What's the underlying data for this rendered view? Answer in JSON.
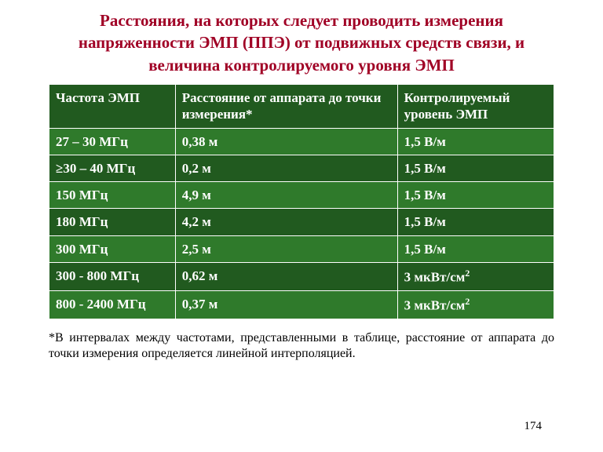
{
  "title": "Расстояния, на которых следует проводить измерения напряженности ЭМП (ППЭ) от подвижных средств связи, и величина контролируемого уровня ЭМП",
  "table": {
    "header_bg": "#215a1f",
    "row_colors": [
      "#2f7a2b",
      "#215a1f"
    ],
    "text_color": "#ffffff",
    "border_color": "#ffffff",
    "columns": [
      "Частота ЭМП",
      "Расстояние от аппарата до точки измерения*",
      "Контролируемый уровень ЭМП"
    ],
    "rows": [
      {
        "c1": "27 – 30 МГц",
        "c2": "0,38 м",
        "c3": "1,5 В/м"
      },
      {
        "c1": "≥30 – 40 МГц",
        "c2": "0,2 м",
        "c3": "1,5 В/м"
      },
      {
        "c1": "150 МГц",
        "c2": "4,9 м",
        "c3": "1,5 В/м"
      },
      {
        "c1": "180 МГц",
        "c2": "4,2 м",
        "c3": "1,5 В/м"
      },
      {
        "c1": "300 МГц",
        "c2": "2,5 м",
        "c3": "1,5 В/м"
      },
      {
        "c1": "300 - 800 МГц",
        "c2": "0,62 м",
        "c3_html": "3 мкВт/см<sup>2</sup>"
      },
      {
        "c1": "800 - 2400 МГц",
        "c2": "0,37 м",
        "c3_html": "3 мкВт/см<sup>2</sup>"
      }
    ]
  },
  "footnote": "*В  интервалах  между  частотами,   представленными  в таблице,   расстояние от  аппарата  до точки измерения определяется линейной   интерполяцией.",
  "page_number": "174",
  "title_color": "#a00025",
  "title_fontsize": 21,
  "cell_fontsize": 17,
  "footnote_fontsize": 16
}
